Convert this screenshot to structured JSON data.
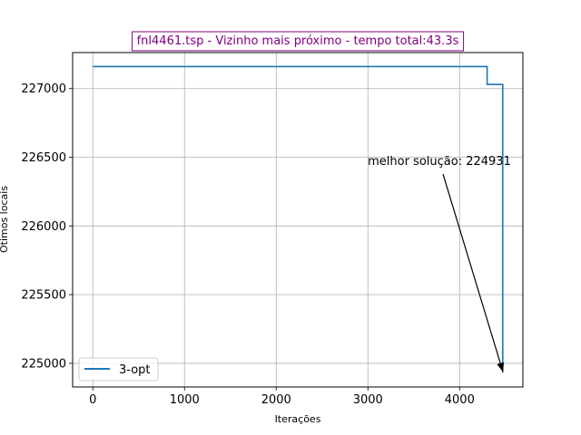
{
  "chart_data": {
    "type": "line",
    "title": "fnl4461.tsp - Vizinho mais próximo - tempo total:43.3s",
    "xlabel": "Iterações",
    "ylabel": "Ótimos locais",
    "xlim": [
      -220,
      4690
    ],
    "ylim": [
      224828,
      227262
    ],
    "xticks": [
      0,
      1000,
      2000,
      3000,
      4000
    ],
    "yticks": [
      225000,
      225500,
      226000,
      226500,
      227000
    ],
    "grid": true,
    "legend_position": "lower-left",
    "series": [
      {
        "name": "3-opt",
        "color": "#1f77b4",
        "x": [
          0,
          4300,
          4300,
          4470,
          4470
        ],
        "y": [
          227160,
          227160,
          227030,
          227030,
          224931
        ]
      }
    ],
    "annotation": {
      "text": "melhor solução: 224931",
      "text_at": [
        3780,
        226470
      ],
      "point": [
        4470,
        224931
      ]
    },
    "title_color": "#800080"
  }
}
